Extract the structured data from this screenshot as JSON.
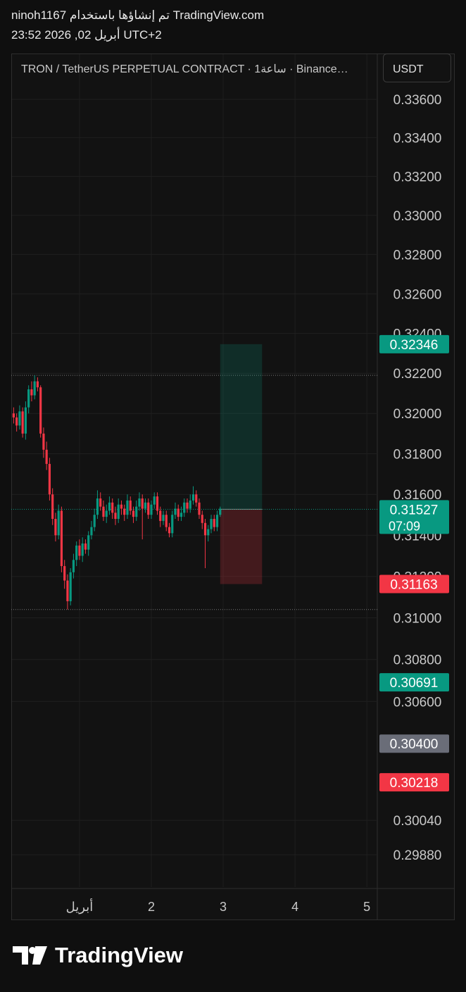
{
  "header": {
    "line1": "ninoh1167 تم إنشاؤها باستخدام TradingView.com‏",
    "line2": "23:52 2026 ,02 أبريل UTC+2"
  },
  "brand": "TradingView",
  "chart_data": {
    "type": "candlestick",
    "title": "TRON / TetherUS PERPETUAL CONTRACT · 1ساعة · Binance…",
    "currency": "USDT",
    "log_scale": true,
    "grid": true,
    "up_color": "#089981",
    "down_color": "#f23645",
    "x": [
      -22,
      -21,
      -20,
      -19,
      -18,
      -17,
      -16,
      -15,
      -14,
      -13,
      -12,
      -11,
      -10,
      -9,
      -8,
      -7,
      -6,
      -5,
      -4,
      -3,
      -2,
      -1,
      0,
      1,
      2,
      3,
      4,
      5,
      6,
      7,
      8,
      9,
      10,
      11,
      12,
      13,
      14,
      15,
      16,
      17,
      18,
      19,
      20,
      21,
      22,
      23,
      24,
      25,
      26,
      27,
      28,
      29,
      30,
      31,
      32,
      33,
      34,
      35,
      36,
      37,
      38,
      39,
      40,
      41,
      42,
      43,
      44,
      45,
      46,
      47
    ],
    "open": [
      0.32,
      0.3198,
      0.3194,
      0.3201,
      0.319,
      0.3203,
      0.3212,
      0.3209,
      0.3216,
      0.3213,
      0.319,
      0.3182,
      0.3175,
      0.316,
      0.3148,
      0.314,
      0.3152,
      0.3125,
      0.3118,
      0.3108,
      0.3122,
      0.3128,
      0.3135,
      0.313,
      0.3136,
      0.3133,
      0.314,
      0.3144,
      0.315,
      0.3158,
      0.3154,
      0.3149,
      0.3152,
      0.3156,
      0.3151,
      0.3148,
      0.3155,
      0.3153,
      0.315,
      0.3157,
      0.3152,
      0.3149,
      0.3154,
      0.3158,
      0.3153,
      0.3156,
      0.315,
      0.3155,
      0.3159,
      0.3152,
      0.3147,
      0.315,
      0.3144,
      0.3141,
      0.315,
      0.3153,
      0.3149,
      0.3151,
      0.3156,
      0.3153,
      0.3157,
      0.316,
      0.3156,
      0.315,
      0.3146,
      0.314,
      0.3143,
      0.3148,
      0.3144,
      0.315
    ],
    "high": [
      0.3203,
      0.32,
      0.3204,
      0.3203,
      0.3206,
      0.3214,
      0.3216,
      0.3219,
      0.3218,
      0.3214,
      0.3193,
      0.3186,
      0.3178,
      0.3163,
      0.3151,
      0.3155,
      0.3154,
      0.3128,
      0.3121,
      0.3124,
      0.3131,
      0.3137,
      0.3138,
      0.3139,
      0.3138,
      0.3142,
      0.3147,
      0.3153,
      0.3162,
      0.3161,
      0.3157,
      0.3155,
      0.3159,
      0.3158,
      0.3154,
      0.3158,
      0.3157,
      0.3155,
      0.316,
      0.3159,
      0.3154,
      0.3157,
      0.3161,
      0.316,
      0.3158,
      0.3158,
      0.3157,
      0.3161,
      0.3161,
      0.3154,
      0.3152,
      0.3152,
      0.3146,
      0.3152,
      0.3156,
      0.3155,
      0.3154,
      0.3158,
      0.3158,
      0.316,
      0.3164,
      0.3162,
      0.3158,
      0.3152,
      0.3148,
      0.3145,
      0.315,
      0.315,
      0.3152,
      0.3154
    ],
    "low": [
      0.3195,
      0.3191,
      0.3192,
      0.3188,
      0.3187,
      0.32,
      0.3206,
      0.3207,
      0.3211,
      0.3188,
      0.3178,
      0.3172,
      0.3157,
      0.3145,
      0.3137,
      0.3138,
      0.3122,
      0.3114,
      0.3104,
      0.3106,
      0.3119,
      0.3125,
      0.3128,
      0.3127,
      0.3131,
      0.313,
      0.3138,
      0.3142,
      0.3148,
      0.3152,
      0.3147,
      0.3146,
      0.315,
      0.3148,
      0.3145,
      0.3146,
      0.315,
      0.3147,
      0.3148,
      0.315,
      0.3146,
      0.3147,
      0.3152,
      0.3138,
      0.3151,
      0.3148,
      0.3148,
      0.3153,
      0.315,
      0.3144,
      0.3145,
      0.3142,
      0.3139,
      0.3139,
      0.3148,
      0.3147,
      0.3147,
      0.3149,
      0.3151,
      0.3151,
      0.3155,
      0.3154,
      0.3148,
      0.3143,
      0.3124,
      0.3137,
      0.3141,
      0.3142,
      0.3142,
      0.3149
    ],
    "close": [
      0.3198,
      0.3194,
      0.3201,
      0.319,
      0.3203,
      0.3212,
      0.3209,
      0.3216,
      0.3213,
      0.319,
      0.3182,
      0.3175,
      0.316,
      0.3148,
      0.314,
      0.3152,
      0.3125,
      0.3118,
      0.3108,
      0.3122,
      0.3128,
      0.3135,
      0.313,
      0.3136,
      0.3133,
      0.314,
      0.3144,
      0.315,
      0.3158,
      0.3154,
      0.3149,
      0.3152,
      0.3156,
      0.3151,
      0.3148,
      0.3155,
      0.3153,
      0.315,
      0.3157,
      0.3152,
      0.3149,
      0.3154,
      0.3158,
      0.3153,
      0.3156,
      0.315,
      0.3155,
      0.3159,
      0.3152,
      0.3147,
      0.315,
      0.3144,
      0.3141,
      0.315,
      0.3153,
      0.3149,
      0.3151,
      0.3156,
      0.3153,
      0.3157,
      0.316,
      0.3156,
      0.315,
      0.3146,
      0.314,
      0.3143,
      0.3148,
      0.3144,
      0.315,
      0.3153
    ],
    "xlim": [
      -22.8,
      99.5
    ],
    "xticks": [
      {
        "value": 0,
        "label": "أبريل"
      },
      {
        "value": 24,
        "label": "2"
      },
      {
        "value": 48,
        "label": "3"
      },
      {
        "value": 72,
        "label": "4"
      },
      {
        "value": 96,
        "label": "5"
      }
    ],
    "ylim": [
      0.2973,
      0.3384
    ],
    "yticks": [
      {
        "value": 0.336,
        "label": "0.33600"
      },
      {
        "value": 0.334,
        "label": "0.33400"
      },
      {
        "value": 0.332,
        "label": "0.33200"
      },
      {
        "value": 0.33,
        "label": "0.33000"
      },
      {
        "value": 0.328,
        "label": "0.32800"
      },
      {
        "value": 0.326,
        "label": "0.32600"
      },
      {
        "value": 0.324,
        "label": "0.32400"
      },
      {
        "value": 0.322,
        "label": "0.32200"
      },
      {
        "value": 0.32,
        "label": "0.32000"
      },
      {
        "value": 0.318,
        "label": "0.31800"
      },
      {
        "value": 0.316,
        "label": "0.31600"
      },
      {
        "value": 0.314,
        "label": "0.31400"
      },
      {
        "value": 0.312,
        "label": "0.31200"
      },
      {
        "value": 0.31,
        "label": "0.31000"
      },
      {
        "value": 0.308,
        "label": "0.30800"
      },
      {
        "value": 0.306,
        "label": "0.30600"
      },
      {
        "value": 0.3004,
        "label": "0.30040"
      },
      {
        "value": 0.2988,
        "label": "0.29880"
      }
    ],
    "position_x": [
      47,
      61
    ],
    "price_labels": [
      {
        "value": 0.32346,
        "label": "0.32346",
        "color": "#089981"
      },
      {
        "value": 0.31527,
        "label": "0.31527",
        "color": "#089981",
        "countdown": "07:09"
      },
      {
        "value": 0.31163,
        "label": "0.31163",
        "color": "#f23645"
      },
      {
        "value": 0.30691,
        "label": "0.30691",
        "color": "#089981"
      },
      {
        "value": 0.304,
        "label": "0.30400",
        "color": "#6a6d78"
      },
      {
        "value": 0.30218,
        "label": "0.30218",
        "color": "#f23645"
      }
    ]
  }
}
